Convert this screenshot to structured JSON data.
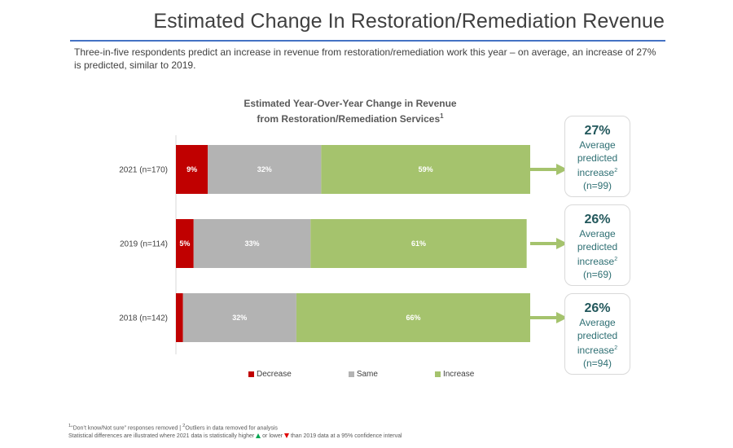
{
  "page": {
    "title": "Estimated Change In Restoration/Remediation Revenue",
    "subtitle": "Three-in-five respondents predict an increase in revenue from restoration/remediation work this year – on average, an increase of 27% is predicted, similar to 2019."
  },
  "chart_data": {
    "type": "bar",
    "orientation": "horizontal",
    "stacked": true,
    "title": "Estimated Year-Over-Year Change in Revenue",
    "title_line2": "from Restoration/Remediation Services",
    "title_superscript": "1",
    "categories": [
      "2021 (n=170)",
      "2019 (n=114)",
      "2018 (n=142)"
    ],
    "series": [
      {
        "name": "Decrease",
        "color": "#c00000",
        "values": [
          9,
          5,
          2
        ],
        "labels": [
          "9%",
          "5%",
          "2%"
        ]
      },
      {
        "name": "Same",
        "color": "#b3b3b3",
        "values": [
          32,
          33,
          32
        ],
        "labels": [
          "32%",
          "33%",
          "32%"
        ]
      },
      {
        "name": "Increase",
        "color": "#a5c36d",
        "values": [
          59,
          61,
          66
        ],
        "labels": [
          "59%",
          "61%",
          "66%"
        ]
      }
    ],
    "xlim": [
      0,
      100
    ],
    "grid": false,
    "legend_position": "bottom"
  },
  "legend": [
    {
      "label": "Decrease",
      "color": "#c00000"
    },
    {
      "label": "Same",
      "color": "#b3b3b3"
    },
    {
      "label": "Increase",
      "color": "#a5c36d"
    }
  ],
  "callouts": [
    {
      "pct": "27%",
      "line1": "Average",
      "line2": "predicted",
      "line3": "increase",
      "sup": "2",
      "n": "(n=99)"
    },
    {
      "pct": "26%",
      "line1": "Average",
      "line2": "predicted",
      "line3": "increase",
      "sup": "2",
      "n": "(n=69)"
    },
    {
      "pct": "26%",
      "line1": "Average",
      "line2": "predicted",
      "line3": "increase",
      "sup": "2",
      "n": "(n=94)"
    }
  ],
  "footnotes": {
    "line1_sup": "1",
    "line1_a": "“Don’t know/Not sure” responses removed | ",
    "line1_sup2": "2",
    "line1_b": "Outliers in data removed for analysis",
    "line2_a": "Statistical differences are illustrated where 2021 data is statistically higher ",
    "line2_b": " or lower ",
    "line2_c": " than 2019 data at a 95% confidence interval"
  },
  "colors": {
    "accent_rule": "#4472c4",
    "arrow": "#a5c36d",
    "callout_text": "#2e6f73"
  }
}
